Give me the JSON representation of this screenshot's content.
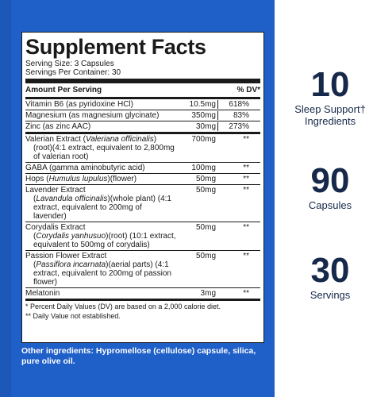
{
  "facts": {
    "title": "Supplement Facts",
    "serving_size": "Serving Size: 3 Capsules",
    "servings_per_container": "Servings Per Container: 30",
    "header_amount": "Amount Per Serving",
    "header_dv": "% DV*",
    "rows": [
      {
        "name": "Vitamin B6 (as pyridoxine HCl)",
        "amount": "10.5mg",
        "dv": "618%"
      },
      {
        "name": "Magnesium (as magnesium glycinate)",
        "amount": "350mg",
        "dv": "83%"
      },
      {
        "name": "Zinc (as zinc AAC)",
        "amount": "30mg",
        "dv": "273%"
      }
    ],
    "herbs": [
      {
        "name_pre": "Valerian Extract (",
        "latin": "Valeriana officinalis",
        "name_post": ")",
        "desc": "(root)(4:1 extract, equivalent to 2,800mg of valerian root)",
        "amount": "700mg",
        "dv": "**"
      },
      {
        "name_pre": "GABA (gamma aminobutyric acid)",
        "latin": "",
        "name_post": "",
        "desc": "",
        "amount": "100mg",
        "dv": "**"
      },
      {
        "name_pre": "Hops (",
        "latin": "Humulus lupulus",
        "name_post": ")(flower)",
        "desc": "",
        "amount": "50mg",
        "dv": "**"
      },
      {
        "name_pre": "Lavender Extract",
        "latin": "",
        "name_post": "",
        "desc_pre": "(",
        "desc_latin": "Lavandula officinalis",
        "desc": ")(whole plant) (4:1 extract, equivalent to 200mg of lavender)",
        "amount": "50mg",
        "dv": "**"
      },
      {
        "name_pre": "Corydalis Extract",
        "latin": "",
        "name_post": "",
        "desc_pre": "(",
        "desc_latin": "Corydalis yanhusuo",
        "desc": ")(root) (10:1 extract, equivalent to 500mg of corydalis)",
        "amount": "50mg",
        "dv": "**"
      },
      {
        "name_pre": "Passion Flower Extract",
        "latin": "",
        "name_post": "",
        "desc_pre": "(",
        "desc_latin": "Passiflora incarnata",
        "desc": ")(aerial parts) (4:1 extract, equivalent to 200mg of passion flower)",
        "amount": "50mg",
        "dv": "**"
      },
      {
        "name_pre": "Melatonin",
        "latin": "",
        "name_post": "",
        "desc": "",
        "amount": "3mg",
        "dv": "**"
      }
    ],
    "footnote_1": "* Percent Daily Values (DV) are based on a 2,000 calorie diet.",
    "footnote_2": "** Daily Value not established."
  },
  "other_ingredients": "Other ingredients: Hypromellose (cellulose) capsule, silica, pure olive oil.",
  "stats": [
    {
      "number": "10",
      "label_1": "Sleep Support†",
      "label_2": "Ingredients"
    },
    {
      "number": "90",
      "label_1": "Capsules",
      "label_2": ""
    },
    {
      "number": "30",
      "label_1": "Servings",
      "label_2": ""
    }
  ],
  "colors": {
    "panel_blue": "#1f5fc8",
    "stat_text": "#16294a"
  }
}
